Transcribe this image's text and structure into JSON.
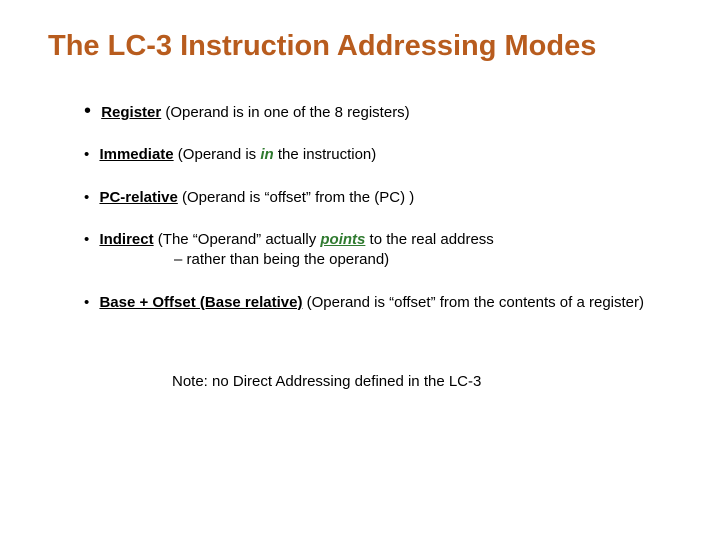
{
  "title": "The LC-3 Instruction Addressing Modes",
  "bullets": {
    "register": {
      "name": "Register",
      "desc": " (Operand is in one of the 8 registers)"
    },
    "immediate": {
      "name": "Immediate",
      "desc_pre": " (Operand is ",
      "in_word": "in",
      "desc_post": " the instruction)"
    },
    "pcrel": {
      "name": "PC-relative",
      "desc": " (Operand is “offset” from the (PC) )"
    },
    "indirect": {
      "name": "Indirect",
      "desc_pre": " (The “Operand” actually ",
      "points_word": "points",
      "desc_post": " to the real address",
      "line2": "– rather than being the operand)"
    },
    "baseoffset": {
      "name": "Base + Offset  (Base relative)",
      "desc": " (Operand is “offset” from the contents of a register)"
    }
  },
  "note": "Note: no Direct Addressing defined in the LC-3",
  "colors": {
    "title": "#b85c1e",
    "accent_green": "#2f7a2f",
    "text": "#000000",
    "background": "#ffffff"
  }
}
